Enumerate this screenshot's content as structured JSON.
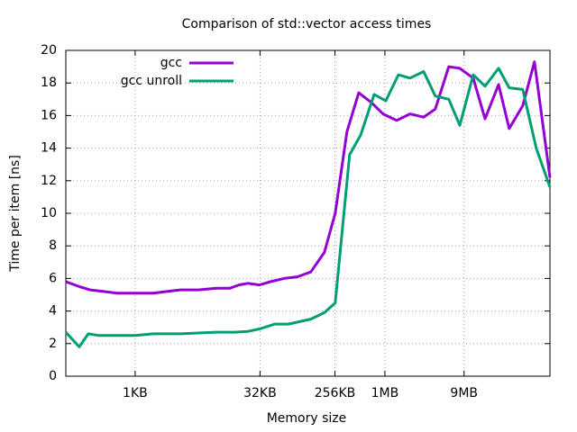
{
  "chart_data": {
    "type": "line",
    "title": "Comparison of std::vector access times",
    "x_label": "Memory size",
    "y_label": "Time per item [ns]",
    "xlog": true,
    "grid": true,
    "legend": "top-left",
    "xlim": [
      0.146,
      100000
    ],
    "xticks": [
      {
        "value": 1,
        "label": "1KB"
      },
      {
        "value": 32,
        "label": "32KB"
      },
      {
        "value": 256,
        "label": "256KB"
      },
      {
        "value": 1024,
        "label": "1MB"
      },
      {
        "value": 9216,
        "label": "9MB"
      }
    ],
    "ylim": [
      0,
      20
    ],
    "yticks": [
      0,
      2,
      4,
      6,
      8,
      10,
      12,
      14,
      16,
      18,
      20
    ],
    "series": [
      {
        "name": "gcc",
        "color": "#9400d3",
        "x": [
          0.146,
          0.212,
          0.286,
          0.417,
          0.607,
          1,
          1.65,
          2.4,
          3.5,
          5.8,
          9.5,
          13.8,
          17.8,
          22.8,
          31.6,
          42.8,
          62,
          90,
          131,
          191,
          258,
          357,
          495,
          704,
          975,
          1420,
          2060,
          3000,
          4150,
          6040,
          8190,
          11900,
          16500,
          24000,
          32300,
          47000,
          65000,
          100000
        ],
        "values": [
          5.8,
          5.5,
          5.3,
          5.2,
          5.1,
          5.1,
          5.1,
          5.2,
          5.3,
          5.3,
          5.4,
          5.4,
          5.6,
          5.7,
          5.6,
          5.8,
          6.0,
          6.1,
          6.4,
          7.6,
          10.0,
          15.0,
          17.4,
          16.8,
          16.1,
          15.7,
          16.1,
          15.9,
          16.4,
          19.0,
          18.9,
          18.3,
          15.8,
          17.9,
          15.2,
          16.6,
          19.3,
          12.2
        ]
      },
      {
        "name": "gcc unroll",
        "color": "#009e73",
        "x": [
          0.146,
          0.212,
          0.272,
          0.368,
          1,
          1.65,
          3.5,
          9.5,
          15.7,
          22.8,
          31.6,
          48.4,
          70.4,
          131,
          191,
          258,
          385,
          522,
          760,
          1050,
          1490,
          2060,
          3000,
          4150,
          6040,
          8190,
          11900,
          16500,
          24000,
          32300,
          47000,
          68300,
          100000
        ],
        "values": [
          2.7,
          1.8,
          2.6,
          2.5,
          2.5,
          2.6,
          2.6,
          2.7,
          2.7,
          2.75,
          2.9,
          3.2,
          3.2,
          3.5,
          3.9,
          4.5,
          13.6,
          14.8,
          17.3,
          16.9,
          18.5,
          18.3,
          18.7,
          17.2,
          17.0,
          15.4,
          18.5,
          17.8,
          18.9,
          17.7,
          17.6,
          14.0,
          11.6
        ]
      }
    ]
  }
}
